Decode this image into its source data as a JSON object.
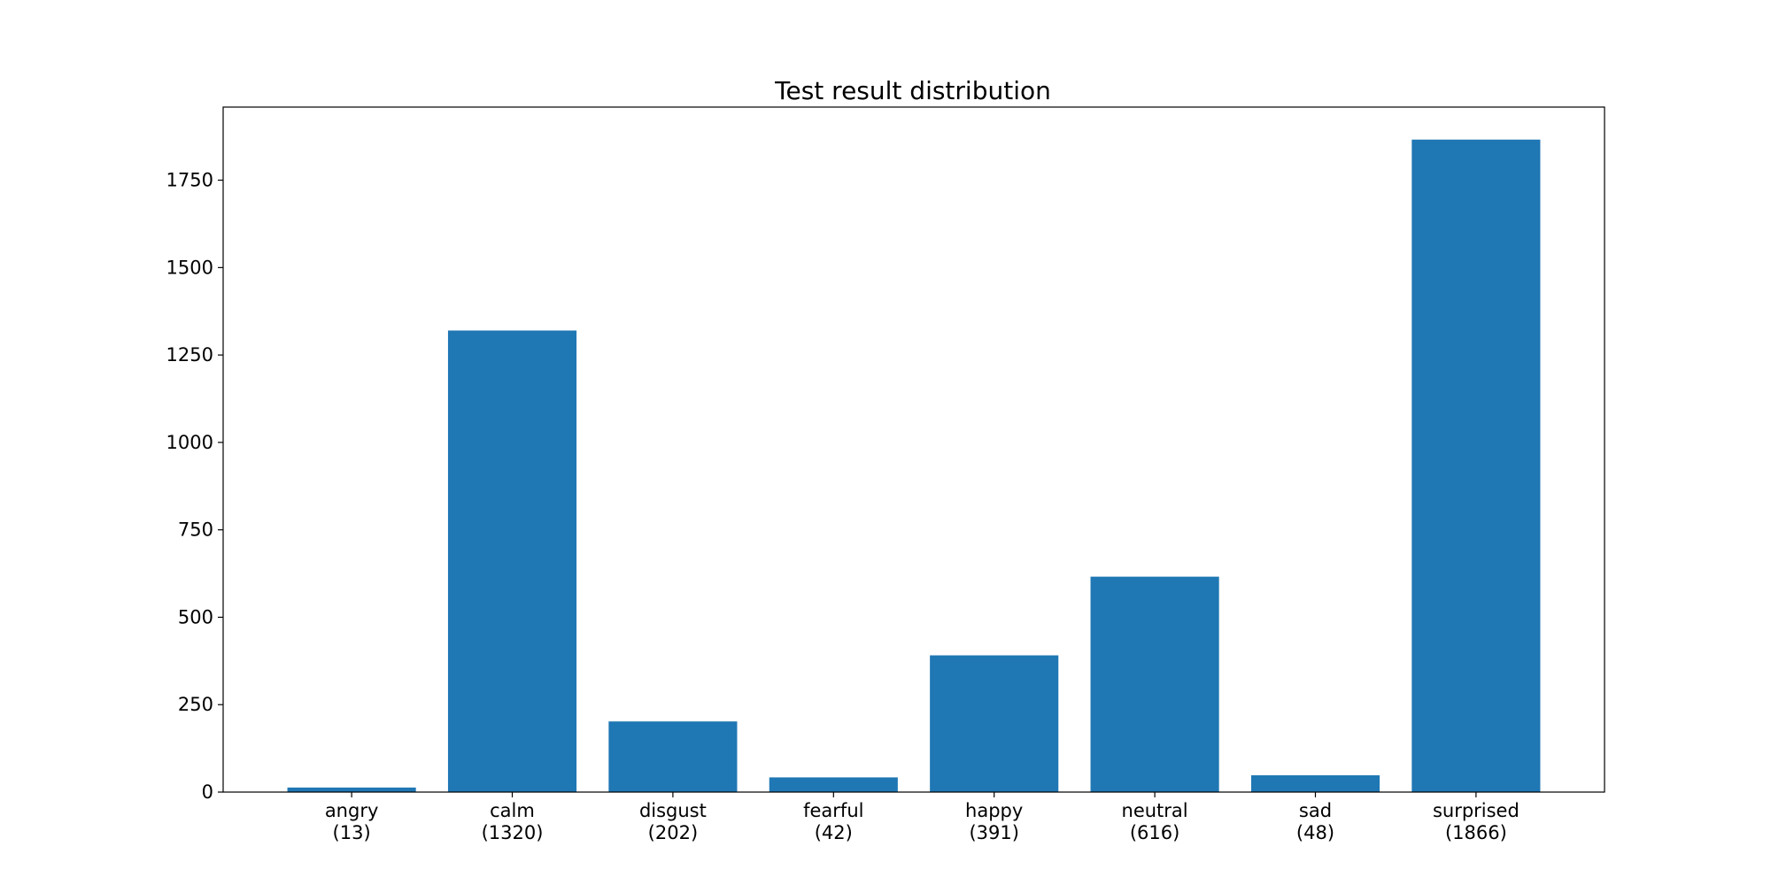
{
  "chart_data": {
    "type": "bar",
    "title": "Test result distribution",
    "xlabel": "",
    "ylabel": "",
    "categories": [
      "angry",
      "calm",
      "disgust",
      "fearful",
      "happy",
      "neutral",
      "sad",
      "surprised"
    ],
    "category_counts": [
      "(13)",
      "(1320)",
      "(202)",
      "(42)",
      "(391)",
      "(616)",
      "(48)",
      "(1866)"
    ],
    "values": [
      13,
      1320,
      202,
      42,
      391,
      616,
      48,
      1866
    ],
    "ylim": [
      0,
      1959
    ],
    "yticks": [
      0,
      250,
      500,
      750,
      1000,
      1250,
      1500,
      1750
    ],
    "ytick_labels": [
      "0",
      "250",
      "500",
      "750",
      "1000",
      "1250",
      "1500",
      "1750"
    ],
    "grid": false,
    "colors": {
      "bar": "#1f77b4",
      "axes": "#000000",
      "background": "#ffffff"
    }
  }
}
